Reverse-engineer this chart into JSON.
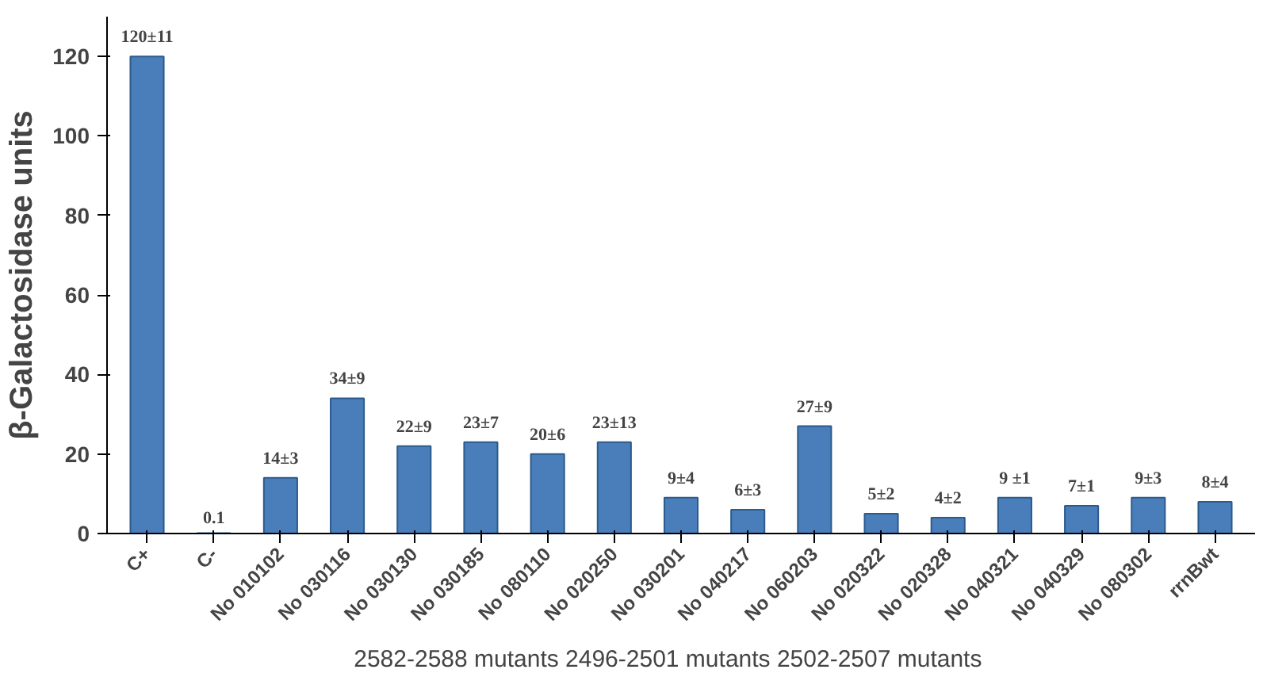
{
  "chart_data": {
    "type": "bar",
    "ylabel": "β-Galactosidase units",
    "xlabel": "2582-2588 mutants   2496-2501 mutants   2502-2507 mutants",
    "categories": [
      "C+",
      "C-",
      "No 010102",
      "No 030116",
      "No 030130",
      "No 030185",
      "No 080110",
      "No 020250",
      "No 030201",
      "No 040217",
      "No 060203",
      "No 020322",
      "No 020328",
      "No 040321",
      "No 040329",
      "No 080302",
      "rrnBwt"
    ],
    "values": [
      120,
      0.1,
      14,
      34,
      22,
      23,
      20,
      23,
      9,
      6,
      27,
      5,
      4,
      9,
      7,
      9,
      8
    ],
    "value_labels": [
      "120±11",
      "0.1",
      "14±3",
      "34±9",
      "22±9",
      "23±7",
      "20±6",
      "23±13",
      "9±4",
      "6±3",
      "27±9",
      "5±2",
      "4±2",
      "9 ±1",
      "7±1",
      "9±3",
      "8±4"
    ],
    "color": "#4a7ebb",
    "ylim": [
      0,
      130
    ],
    "yticks": [
      0,
      20,
      40,
      60,
      80,
      100,
      120
    ],
    "grid": false
  }
}
